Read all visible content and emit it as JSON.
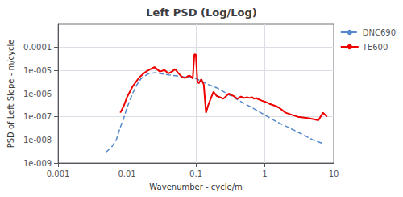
{
  "chart_data": {
    "type": "line",
    "title": "Left PSD (Log/Log)",
    "x_label": "Wavenumber - cycle/m",
    "y_label": "PSD of Left Slope - m/cycle",
    "log": true,
    "grid": true,
    "legend": "upper right",
    "xlim": [
      0.001,
      10
    ],
    "ylim": [
      1e-09,
      0.001
    ],
    "xticks": [
      0.001,
      0.01,
      0.1,
      1,
      10
    ],
    "yticks": [
      {
        "value": 1e-09,
        "label": "1e-009"
      },
      {
        "value": 1e-08,
        "label": "1e-008"
      },
      {
        "value": 1e-07,
        "label": "1e-007"
      },
      {
        "value": 1e-06,
        "label": "1e-006"
      },
      {
        "value": 1e-05,
        "label": "1e-005"
      },
      0.0001
    ],
    "series": [
      {
        "name": "DNC690",
        "color": "#5588CC",
        "line_style": "dashed",
        "x": [
          0.005,
          0.006,
          0.007,
          0.0075,
          0.008,
          0.009,
          0.01,
          0.011,
          0.012,
          0.014,
          0.016,
          0.02,
          0.025,
          0.03,
          0.04,
          0.05,
          0.06,
          0.07,
          0.08,
          0.09,
          0.1,
          0.12,
          0.15,
          0.2,
          0.3,
          0.4,
          0.5,
          0.7,
          1.0,
          1.5,
          2.0,
          3.0,
          5.0,
          7.0
        ],
        "values": [
          3e-09,
          5e-09,
          1e-08,
          2e-08,
          3.5e-08,
          9e-08,
          2.5e-07,
          5e-07,
          1e-06,
          2.5e-06,
          4.5e-06,
          7e-06,
          8e-06,
          7.5e-06,
          6.5e-06,
          6e-06,
          5.5e-06,
          5.2e-06,
          5e-06,
          4.8e-06,
          4.5e-06,
          3.5e-06,
          2.5e-06,
          1.8e-06,
          9e-07,
          5.5e-07,
          3.8e-07,
          2.2e-07,
          1.2e-07,
          6e-08,
          4e-08,
          2.2e-08,
          1e-08,
          7e-09
        ]
      },
      {
        "name": "TE600",
        "color": "#EE0000",
        "line_style": "solid",
        "x": [
          0.008,
          0.009,
          0.01,
          0.012,
          0.015,
          0.018,
          0.02,
          0.025,
          0.03,
          0.035,
          0.04,
          0.045,
          0.05,
          0.055,
          0.06,
          0.065,
          0.07,
          0.075,
          0.08,
          0.085,
          0.09,
          0.095,
          0.1,
          0.105,
          0.11,
          0.115,
          0.12,
          0.13,
          0.14,
          0.15,
          0.16,
          0.18,
          0.2,
          0.25,
          0.3,
          0.35,
          0.4,
          0.45,
          0.5,
          0.55,
          0.6,
          0.65,
          0.7,
          0.75,
          0.8,
          0.9,
          1.0,
          1.1,
          1.2,
          1.4,
          1.6,
          2.0,
          2.5,
          3.0,
          4.0,
          5.0,
          6.0,
          7.0,
          8.0
        ],
        "values": [
          1.5e-07,
          3e-07,
          7e-07,
          2e-06,
          5e-06,
          8e-06,
          1e-05,
          1.4e-05,
          9e-06,
          1.05e-05,
          7.5e-06,
          9e-06,
          1.15e-05,
          8e-06,
          6e-06,
          5e-06,
          4.8e-06,
          5.5e-06,
          6e-06,
          5.5e-06,
          4.5e-06,
          5e-05,
          4.8e-05,
          3.5e-06,
          2.8e-06,
          3.5e-06,
          4.2e-06,
          2.5e-06,
          1.5e-07,
          3e-07,
          5e-07,
          1.2e-06,
          8e-07,
          6e-07,
          1e-06,
          8e-07,
          6e-07,
          7.5e-07,
          6.5e-07,
          7e-07,
          6.5e-07,
          7e-07,
          6e-07,
          6.5e-07,
          5.8e-07,
          5e-07,
          4.5e-07,
          4e-07,
          3.5e-07,
          3e-07,
          2.5e-07,
          1.5e-07,
          1.2e-07,
          1e-07,
          9e-08,
          8e-08,
          7e-08,
          1.5e-07,
          1e-07
        ]
      }
    ]
  }
}
